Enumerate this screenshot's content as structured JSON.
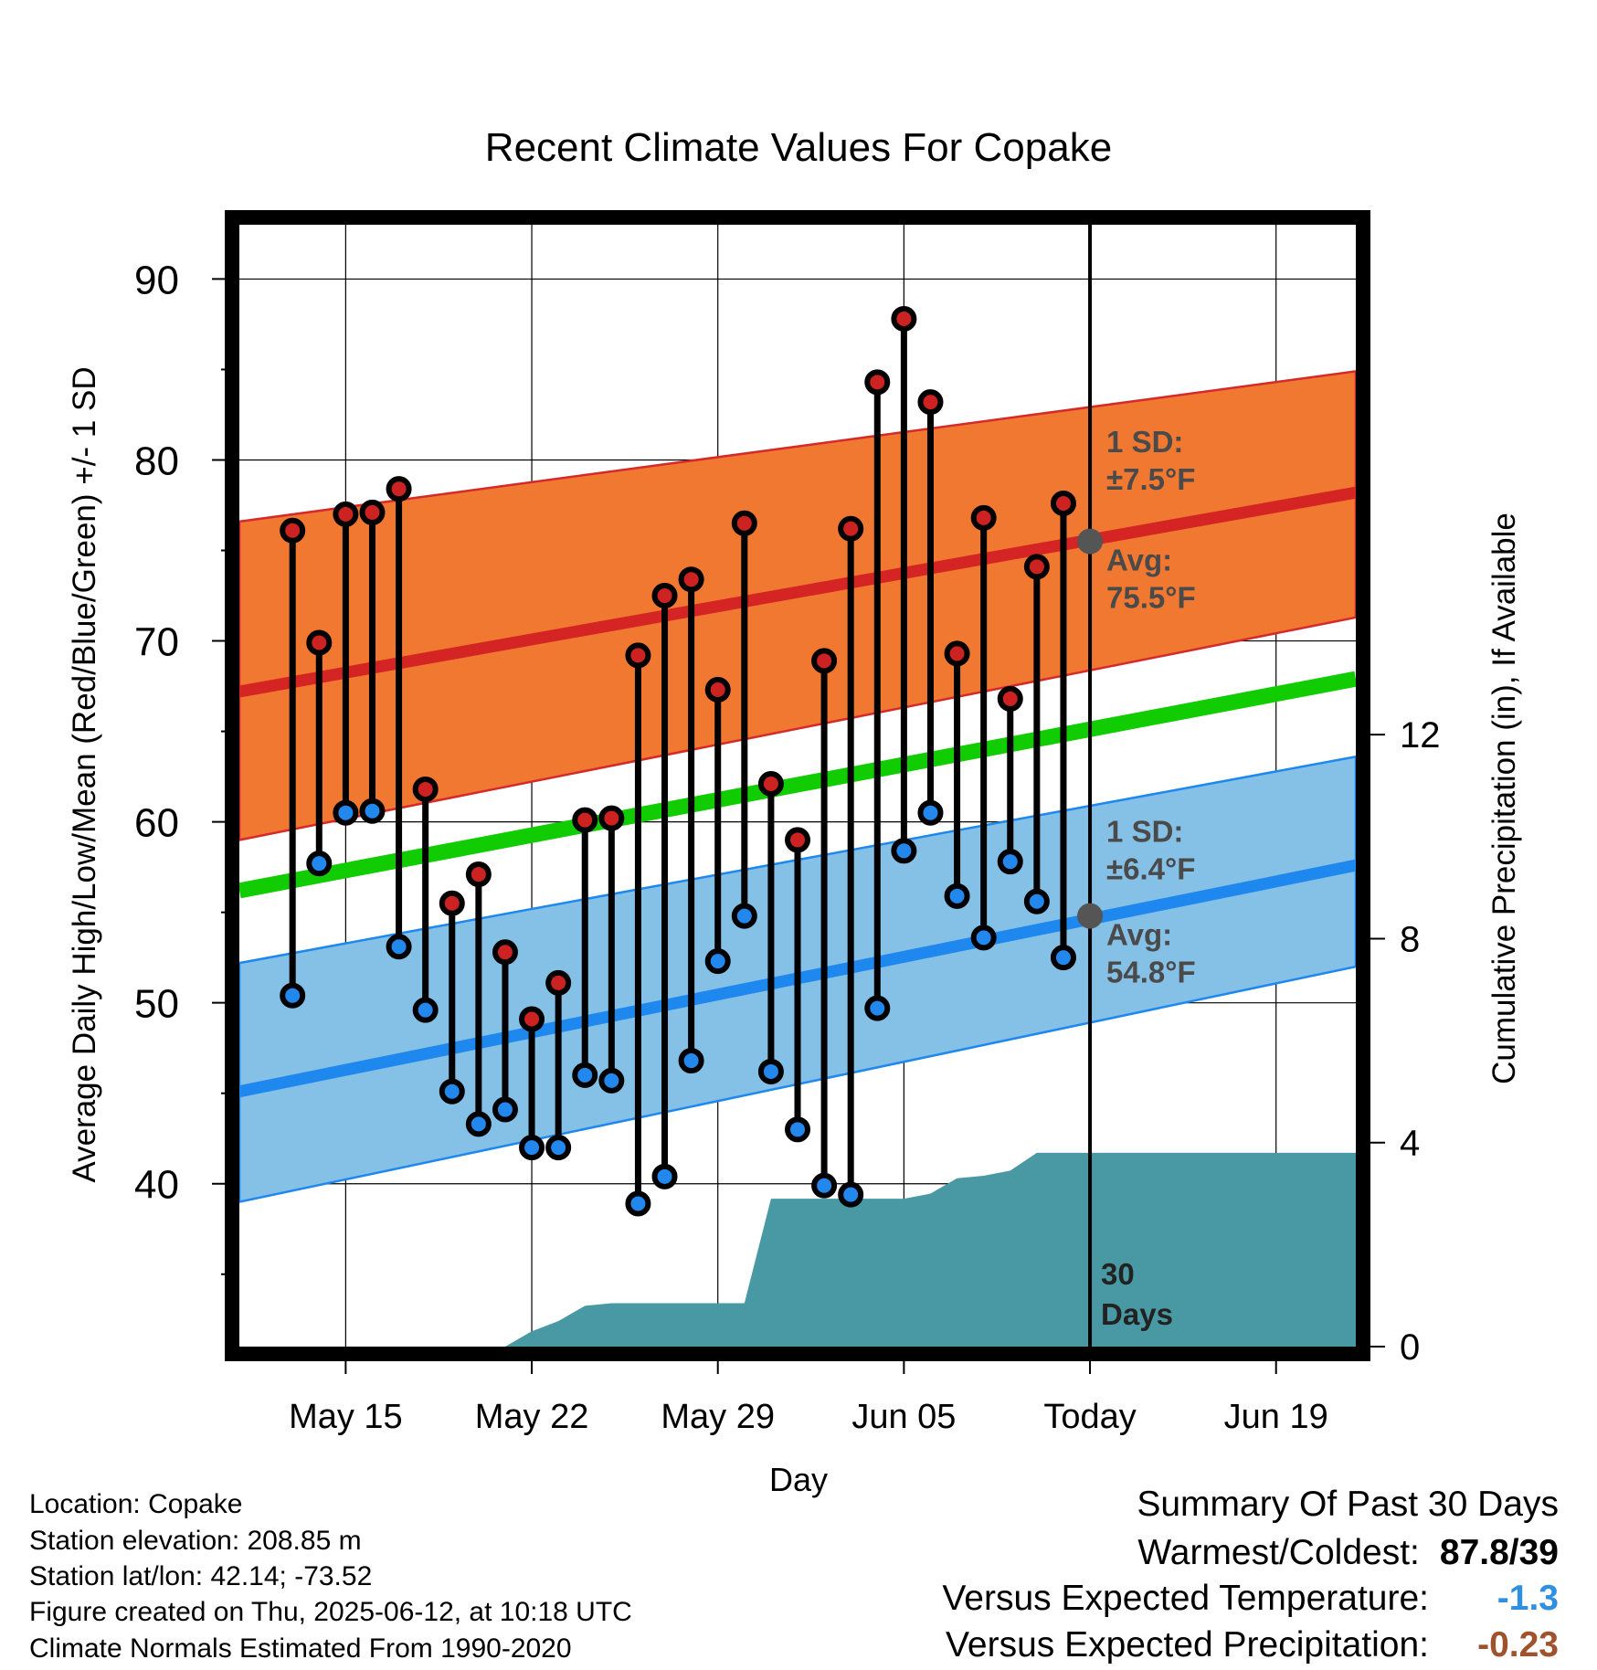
{
  "chart_data": {
    "type": "line",
    "title": "Recent Climate Values For Copake",
    "xlabel": "Day",
    "ylabel": "Average Daily High/Low/Mean (Red/Blue/Green) +/- 1 SD",
    "y2label": "Cumulative Precipitation (in), If Available",
    "ylim": [
      31,
      93
    ],
    "y2lim": [
      0,
      22
    ],
    "xlim": [
      "2025-05-11",
      "2025-06-22"
    ],
    "x_ticks": [
      {
        "date": "2025-05-15",
        "label": "May 15"
      },
      {
        "date": "2025-05-22",
        "label": "May 22"
      },
      {
        "date": "2025-05-29",
        "label": "May 29"
      },
      {
        "date": "2025-06-05",
        "label": "Jun 05"
      },
      {
        "date": "2025-06-12",
        "label": "Today"
      },
      {
        "date": "2025-06-19",
        "label": "Jun 19"
      }
    ],
    "y_ticks": [
      40,
      50,
      60,
      70,
      80,
      90
    ],
    "y2_ticks": [
      0,
      4,
      8,
      12
    ],
    "grid": true,
    "today": "2025-06-12",
    "today_label": "30 Days",
    "dates": [
      "2025-05-13",
      "2025-05-14",
      "2025-05-15",
      "2025-05-16",
      "2025-05-17",
      "2025-05-18",
      "2025-05-19",
      "2025-05-20",
      "2025-05-21",
      "2025-05-22",
      "2025-05-23",
      "2025-05-24",
      "2025-05-25",
      "2025-05-26",
      "2025-05-27",
      "2025-05-28",
      "2025-05-29",
      "2025-05-30",
      "2025-05-31",
      "2025-06-01",
      "2025-06-02",
      "2025-06-03",
      "2025-06-04",
      "2025-06-05",
      "2025-06-06",
      "2025-06-07",
      "2025-06-08",
      "2025-06-09",
      "2025-06-10",
      "2025-06-11"
    ],
    "series": [
      {
        "name": "High",
        "color": "#cc2222",
        "values": [
          76.1,
          69.9,
          77.0,
          77.1,
          78.4,
          61.8,
          55.5,
          57.1,
          52.8,
          49.1,
          51.1,
          60.1,
          60.2,
          69.2,
          72.5,
          73.4,
          67.3,
          76.5,
          62.1,
          59.0,
          68.9,
          76.2,
          84.3,
          87.8,
          83.2,
          69.3,
          76.8,
          66.8,
          74.1,
          77.6
        ]
      },
      {
        "name": "Low",
        "color": "#2288ee",
        "values": [
          50.4,
          57.7,
          60.5,
          60.6,
          53.1,
          49.6,
          45.1,
          43.3,
          44.1,
          42.0,
          42.0,
          46.0,
          45.7,
          38.9,
          40.4,
          46.8,
          52.3,
          54.8,
          46.2,
          43.0,
          39.9,
          39.4,
          49.7,
          58.4,
          60.5,
          55.9,
          53.6,
          57.8,
          55.6,
          52.5
        ]
      }
    ],
    "normals": {
      "high_avg": {
        "start": 67.2,
        "end": 78.2
      },
      "high_sd_band": {
        "lower_start": 59.0,
        "lower_end": 71.3,
        "upper_start": 76.6,
        "upper_end": 84.9
      },
      "mean_avg": {
        "start": 56.2,
        "end": 67.9
      },
      "low_avg": {
        "start": 45.1,
        "end": 57.6
      },
      "low_sd_band": {
        "lower_start": 39.0,
        "lower_end": 52.0,
        "upper_start": 52.2,
        "upper_end": 63.6
      }
    },
    "precip": {
      "dates": [
        "2025-05-11",
        "2025-05-20",
        "2025-05-21",
        "2025-05-22",
        "2025-05-23",
        "2025-05-24",
        "2025-05-25",
        "2025-05-26",
        "2025-05-29",
        "2025-05-30",
        "2025-05-31",
        "2025-06-05",
        "2025-06-06",
        "2025-06-07",
        "2025-06-08",
        "2025-06-09",
        "2025-06-10",
        "2025-06-11",
        "2025-06-22"
      ],
      "values": [
        0,
        0,
        0,
        0.3,
        0.5,
        0.8,
        0.85,
        0.85,
        0.85,
        0.85,
        2.9,
        2.9,
        3.0,
        3.3,
        3.35,
        3.45,
        3.8,
        3.8,
        3.8
      ],
      "color": "#4899a3"
    },
    "annotations": {
      "high_sd_label": "1 SD:",
      "high_sd_value": "±7.5°F",
      "high_avg_label": "Avg:",
      "high_avg_value": "75.5°F",
      "low_sd_label": "1 SD:",
      "low_sd_value": "±6.4°F",
      "low_avg_label": "Avg:",
      "low_avg_value": "54.8°F",
      "today_high_avg": 75.5,
      "today_low_avg": 54.8
    },
    "colors": {
      "high_band": "#f07830",
      "low_band": "#85c0e6",
      "mean_line": "#11cc00",
      "marker_outline": "#000000"
    }
  },
  "info": {
    "location": "Location: Copake",
    "elevation": "Station elevation: 208.85 m",
    "latlon": "Station lat/lon: 42.14; -73.52",
    "created": "Figure created on Thu, 2025-06-12, at 10:18 UTC",
    "normals": "Climate Normals Estimated From 1990-2020"
  },
  "summary": {
    "heading": "Summary Of Past 30 Days",
    "warmest_label": "Warmest/Coldest:",
    "warmest_value": "87.8/39",
    "temp_label": "Versus Expected Temperature:",
    "temp_value": "-1.3",
    "temp_color": "#2f8fe0",
    "precip_label": "Versus Expected Precipitation:",
    "precip_value": "-0.23",
    "precip_color": "#a0522d"
  }
}
